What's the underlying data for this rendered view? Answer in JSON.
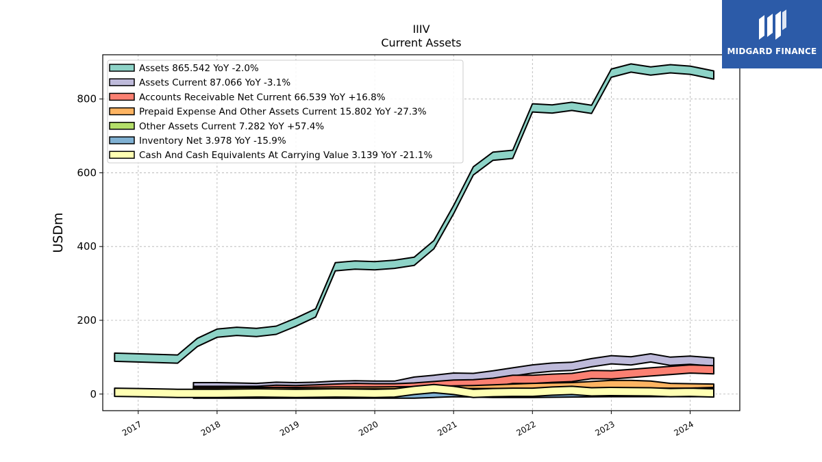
{
  "logo": {
    "text": "MIDGARD FINANCE"
  },
  "chart_data": {
    "type": "area",
    "title": "IIIV",
    "subtitle": "Current  Assets",
    "ylabel": "USDm",
    "xlabel": "",
    "ylim": [
      -45,
      920
    ],
    "xlim": [
      2016.55,
      2024.63
    ],
    "yticks": [
      0,
      200,
      400,
      600,
      800
    ],
    "xticks": [
      2017,
      2018,
      2019,
      2020,
      2021,
      2022,
      2023,
      2024
    ],
    "grid": true,
    "legend_position": "top-left",
    "colors": {
      "assets": "#8dd3c7",
      "assets_current": "#bebada",
      "accounts_receivable": "#fb8072",
      "prepaid": "#fdb462",
      "other": "#b3de69",
      "inventory": "#80b1d3",
      "cash": "#ffffb3"
    },
    "series": [
      {
        "key": "assets",
        "name": "Assets  865.542 YoY -2.0%",
        "x": [
          2016.7,
          2017.5,
          2017.75,
          2018.0,
          2018.25,
          2018.5,
          2018.75,
          2019.0,
          2019.25,
          2019.5,
          2019.75,
          2020.0,
          2020.25,
          2020.5,
          2020.75,
          2021.0,
          2021.25,
          2021.5,
          2021.75,
          2022.0,
          2022.25,
          2022.5,
          2022.75,
          2023.0,
          2023.25,
          2023.5,
          2023.75,
          2024.0,
          2024.3
        ],
        "values": [
          100,
          95,
          140,
          165,
          170,
          167,
          173,
          195,
          220,
          345,
          350,
          348,
          352,
          360,
          405,
          500,
          605,
          645,
          650,
          776,
          773,
          780,
          772,
          870,
          884,
          876,
          882,
          878,
          865
        ]
      },
      {
        "key": "assets_current",
        "name": "Assets Current  87.066 YoY -3.1%",
        "x": [
          2017.7,
          2018.0,
          2018.25,
          2018.5,
          2018.75,
          2019.0,
          2019.25,
          2019.5,
          2019.75,
          2020.0,
          2020.25,
          2020.5,
          2020.75,
          2021.0,
          2021.25,
          2021.5,
          2021.75,
          2022.0,
          2022.25,
          2022.5,
          2022.75,
          2023.0,
          2023.25,
          2023.5,
          2023.75,
          2024.0,
          2024.3
        ],
        "values": [
          20,
          20,
          19,
          18,
          21,
          20,
          21,
          24,
          25,
          24,
          24,
          35,
          40,
          46,
          45,
          52,
          60,
          68,
          73,
          75,
          85,
          93,
          90,
          98,
          89,
          92,
          87
        ]
      },
      {
        "key": "accounts_receivable",
        "name": "Accounts Receivable Net Current  66.539 YoY +16.8%",
        "x": [
          2017.7,
          2018.0,
          2018.25,
          2018.5,
          2018.75,
          2019.0,
          2019.25,
          2019.5,
          2019.75,
          2020.0,
          2020.25,
          2020.5,
          2020.75,
          2021.0,
          2021.25,
          2021.5,
          2021.75,
          2022.0,
          2022.25,
          2022.5,
          2022.75,
          2023.0,
          2023.25,
          2023.5,
          2023.75,
          2024.0,
          2024.3
        ],
        "values": [
          10,
          10,
          10,
          10,
          13,
          12,
          14,
          16,
          18,
          17,
          17,
          19,
          23,
          27,
          28,
          32,
          40,
          40,
          43,
          45,
          53,
          52,
          56,
          60,
          64,
          68,
          66
        ]
      },
      {
        "key": "prepaid",
        "name": "Prepaid Expense And Other Assets Current  15.802 YoY -27.3%",
        "x": [
          2017.7,
          2018.0,
          2018.5,
          2019.0,
          2019.5,
          2020.0,
          2020.5,
          2021.0,
          2021.25,
          2021.5,
          2021.75,
          2022.0,
          2022.25,
          2022.5,
          2022.75,
          2023.0,
          2023.25,
          2023.5,
          2023.75,
          2024.0,
          2024.3
        ],
        "values": [
          6,
          6,
          7,
          7,
          8,
          8,
          9,
          11,
          12,
          14,
          16,
          18,
          19,
          20,
          23,
          26,
          26,
          24,
          18,
          17,
          16
        ]
      },
      {
        "key": "other",
        "name": "Other Assets Current  7.282 YoY +57.4%",
        "x": [
          2017.7,
          2018.0,
          2018.5,
          2019.0,
          2019.5,
          2020.0,
          2020.5,
          2021.0,
          2021.5,
          2022.0,
          2022.5,
          2023.0,
          2023.5,
          2024.0,
          2024.3
        ],
        "values": [
          2,
          2,
          2,
          3,
          3,
          3,
          3,
          4,
          4,
          4,
          5,
          5,
          5,
          5,
          7
        ]
      },
      {
        "key": "inventory",
        "name": "Inventory Net  3.978 YoY -15.9%",
        "x": [
          2017.7,
          2018.0,
          2018.5,
          2019.0,
          2019.5,
          2020.0,
          2020.5,
          2020.75,
          2021.0,
          2021.25,
          2021.5,
          2022.0,
          2022.5,
          2023.0,
          2023.5,
          2024.0,
          2024.3
        ],
        "values": [
          0,
          0,
          0,
          0,
          0,
          0,
          0,
          2,
          4,
          3,
          2,
          2,
          3,
          4,
          4,
          4,
          4
        ]
      },
      {
        "key": "cash",
        "name": "Cash And Cash Equivalents At Carrying Value  3.139 YoY -21.1%",
        "x": [
          2016.7,
          2017.0,
          2017.5,
          2018.0,
          2018.5,
          2019.0,
          2019.5,
          2020.0,
          2020.25,
          2020.5,
          2020.75,
          2021.0,
          2021.25,
          2021.5,
          2021.75,
          2022.0,
          2022.25,
          2022.5,
          2022.75,
          2023.0,
          2023.5,
          2023.75,
          2024.0,
          2024.3
        ],
        "values": [
          5,
          4,
          2,
          2,
          3,
          2,
          3,
          2,
          3,
          10,
          15,
          10,
          2,
          4,
          5,
          5,
          8,
          10,
          6,
          7,
          6,
          4,
          5,
          3
        ]
      }
    ]
  }
}
